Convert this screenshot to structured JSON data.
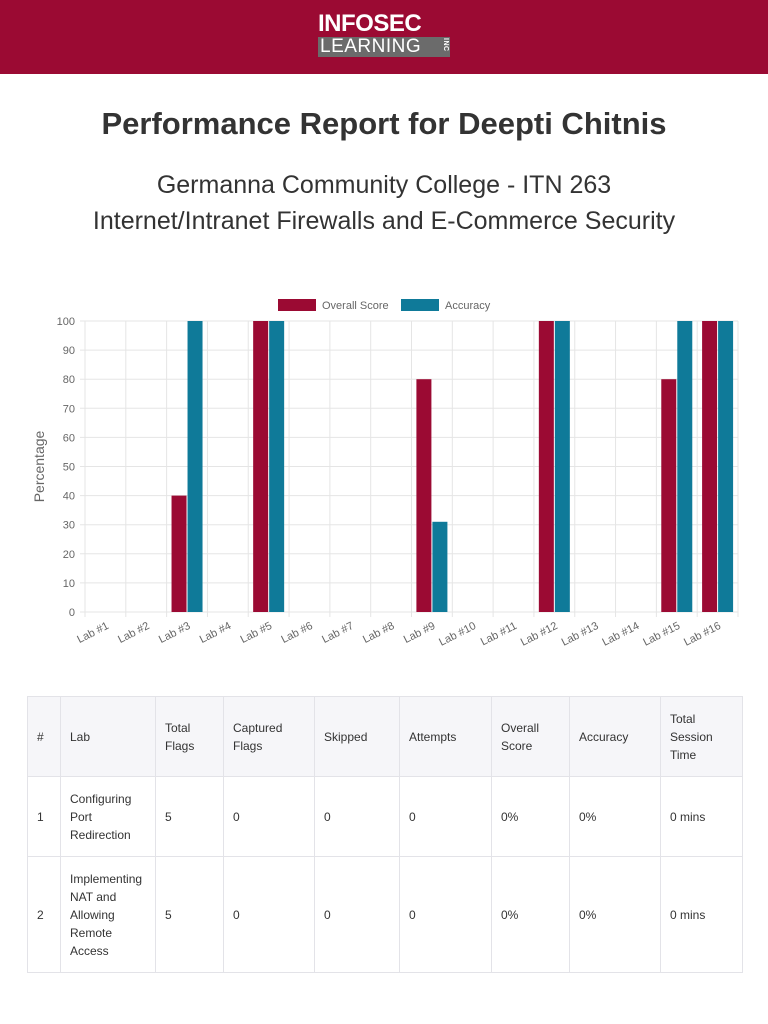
{
  "header": {
    "logo_top": "INFOSEC",
    "logo_bottom": "LEARNING",
    "logo_inc": "INC",
    "background": "#9b0a33"
  },
  "report": {
    "title": "Performance Report for Deepti Chitnis",
    "subtitle_line1": "Germanna Community College - ITN 263",
    "subtitle_line2": "Internet/Intranet Firewalls and E-Commerce Security"
  },
  "chart_data": {
    "type": "bar",
    "title": "",
    "xlabel": "",
    "ylabel": "Percentage",
    "ylim": [
      0,
      100
    ],
    "yticks": [
      0,
      10,
      20,
      30,
      40,
      50,
      60,
      70,
      80,
      90,
      100
    ],
    "legend_position": "top-center",
    "categories": [
      "Lab #1",
      "Lab #2",
      "Lab #3",
      "Lab #4",
      "Lab #5",
      "Lab #6",
      "Lab #7",
      "Lab #8",
      "Lab #9",
      "Lab #10",
      "Lab #11",
      "Lab #12",
      "Lab #13",
      "Lab #14",
      "Lab #15",
      "Lab #16"
    ],
    "series": [
      {
        "name": "Overall Score",
        "color": "#9b0a33",
        "values": [
          0,
          0,
          40,
          0,
          100,
          0,
          0,
          0,
          80,
          0,
          0,
          100,
          0,
          0,
          80,
          100
        ]
      },
      {
        "name": "Accuracy",
        "color": "#0f7a99",
        "values": [
          0,
          0,
          100,
          0,
          100,
          0,
          0,
          0,
          31,
          0,
          0,
          100,
          0,
          0,
          100,
          100
        ]
      }
    ]
  },
  "table": {
    "headers": {
      "num": "#",
      "lab": "Lab",
      "total_flags": "Total Flags",
      "captured_flags": "Captured Flags",
      "skipped": "Skipped",
      "attempts": "Attempts",
      "overall_score": "Overall Score",
      "accuracy": "Accuracy",
      "total_session_time": "Total Session Time"
    },
    "rows": [
      {
        "num": "1",
        "lab": "Configuring Port Redirection",
        "total_flags": "5",
        "captured_flags": "0",
        "skipped": "0",
        "attempts": "0",
        "overall_score": "0%",
        "accuracy": "0%",
        "total_session_time": "0 mins"
      },
      {
        "num": "2",
        "lab": "Implementing NAT and Allowing Remote Access",
        "total_flags": "5",
        "captured_flags": "0",
        "skipped": "0",
        "attempts": "0",
        "overall_score": "0%",
        "accuracy": "0%",
        "total_session_time": "0 mins"
      }
    ]
  }
}
